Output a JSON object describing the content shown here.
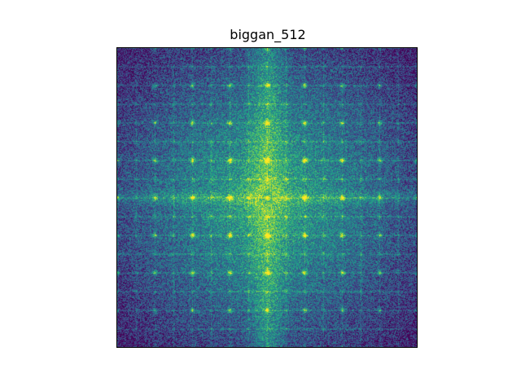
{
  "title": "biggan_512",
  "image": {
    "kind": "fft-magnitude-spectrum",
    "colormap": "viridis",
    "colors": {
      "low": "#440154",
      "mid": "#21918c",
      "high": "#fde725"
    },
    "axes_ticks_visible": false
  }
}
